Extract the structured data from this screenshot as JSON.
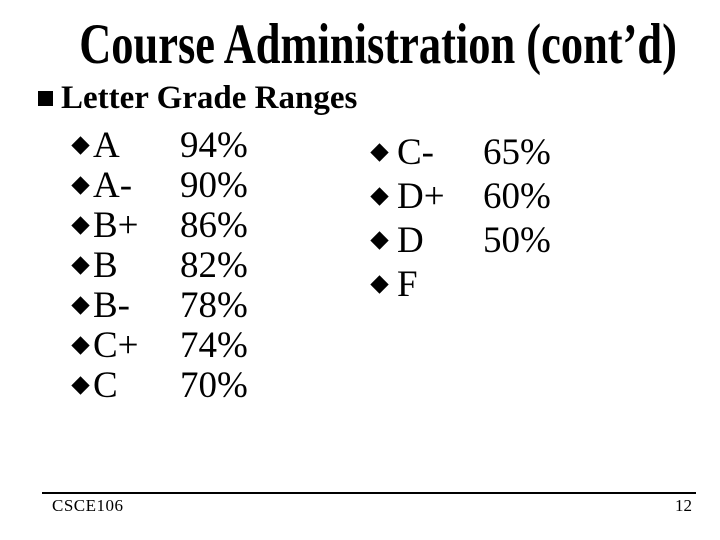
{
  "slide": {
    "title": "Course Administration (cont’d)",
    "heading": "Letter Grade Ranges",
    "grades": {
      "left": [
        {
          "grade": "A",
          "range": "94%"
        },
        {
          "grade": "A-",
          "range": "90%"
        },
        {
          "grade": "B+",
          "range": "86%"
        },
        {
          "grade": "B",
          "range": "82%"
        },
        {
          "grade": "B-",
          "range": "78%"
        },
        {
          "grade": "C+",
          "range": "74%"
        },
        {
          "grade": "C",
          "range": "70%"
        }
      ],
      "right": [
        {
          "grade": "C-",
          "range": "65%"
        },
        {
          "grade": "D+",
          "range": "60%"
        },
        {
          "grade": "D",
          "range": "50%"
        },
        {
          "grade": "F",
          "range": ""
        }
      ]
    },
    "footer": {
      "course": "CSCE106",
      "page": "12"
    },
    "colors": {
      "text": "#000000",
      "background": "#ffffff"
    }
  }
}
